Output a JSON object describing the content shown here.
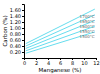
{
  "chart_data": {
    "type": "line",
    "xlabel": "Manganese (%)",
    "ylabel": "Carbon (%)",
    "x": [
      0.3,
      11.8
    ],
    "series": [
      {
        "name": "1700°C",
        "values": [
          0.48,
          1.63
        ]
      },
      {
        "name": "1650°C",
        "values": [
          0.4,
          1.44
        ]
      },
      {
        "name": "1600°C",
        "values": [
          0.32,
          1.25
        ]
      },
      {
        "name": "1550°C",
        "values": [
          0.24,
          1.06
        ]
      },
      {
        "name": "1500°C",
        "values": [
          0.16,
          0.87
        ]
      }
    ],
    "color": "#66ddee",
    "xlim": [
      0,
      12
    ],
    "ylim": [
      0,
      1.8
    ],
    "xticks": [
      0,
      2,
      4,
      6,
      8,
      10,
      12
    ],
    "yticks": [
      {
        "value": 0.2,
        "label": "0.20"
      },
      {
        "value": 0.4,
        "label": "0.40"
      },
      {
        "value": 0.6,
        "label": "0.60"
      },
      {
        "value": 0.8,
        "label": "0.80"
      },
      {
        "value": 1.0,
        "label": "1.00"
      },
      {
        "value": 1.2,
        "label": "1.20"
      },
      {
        "value": 1.4,
        "label": "1.40"
      },
      {
        "value": 1.6,
        "label": "1.60"
      }
    ]
  }
}
